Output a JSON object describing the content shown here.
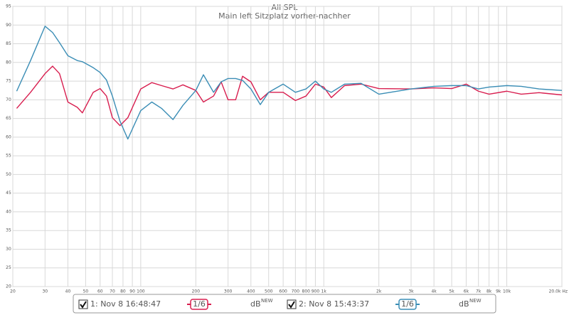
{
  "chart_data": {
    "type": "line",
    "title": "All SPL",
    "subtitle": "Main left Sitzplatz vorher-nachher",
    "log_x": true,
    "grid": true,
    "legend": "bottom",
    "xlim": [
      20,
      20000
    ],
    "ylim": [
      20,
      95
    ],
    "xticks": [
      20,
      30,
      40,
      50,
      60,
      70,
      80,
      90,
      100,
      200,
      300,
      400,
      500,
      600,
      700,
      800,
      900,
      {
        "value": 1000,
        "label": "1k"
      },
      {
        "value": 2000,
        "label": "2k"
      },
      {
        "value": 3000,
        "label": "3k"
      },
      {
        "value": 4000,
        "label": "4k"
      },
      {
        "value": 5000,
        "label": "5k"
      },
      {
        "value": 6000,
        "label": "6k"
      },
      {
        "value": 7000,
        "label": "7k"
      },
      {
        "value": 8000,
        "label": "8k"
      },
      {
        "value": 9000,
        "label": "9k"
      },
      {
        "value": 10000,
        "label": "10k"
      },
      {
        "value": 20000,
        "label": "20.0k Hz"
      }
    ],
    "yticks": [
      20,
      25,
      30,
      35,
      40,
      45,
      50,
      55,
      60,
      65,
      70,
      75,
      80,
      85,
      90,
      95
    ],
    "x": [
      21,
      25,
      30,
      33,
      36,
      40,
      45,
      48,
      55,
      60,
      65,
      70,
      77,
      85,
      100,
      115,
      130,
      150,
      170,
      200,
      220,
      250,
      275,
      300,
      330,
      360,
      400,
      450,
      500,
      600,
      700,
      800,
      900,
      1000,
      1100,
      1300,
      1600,
      2000,
      3000,
      4000,
      5000,
      6000,
      7000,
      8000,
      10000,
      12000,
      15000,
      20000
    ],
    "series": [
      {
        "name": "1: Nov 8 16:48:47",
        "color": "#d81e4f",
        "smoothing": "1/6",
        "unit": "dB",
        "unit_tag": "NEW",
        "values": [
          67.7,
          72,
          77,
          79,
          77,
          69.4,
          68,
          66.5,
          72,
          73,
          71,
          65.2,
          63.1,
          65.2,
          72.9,
          74.6,
          73.8,
          72.9,
          74,
          72.5,
          69.4,
          71,
          74.8,
          70,
          70,
          76.3,
          74.8,
          70,
          72,
          72,
          69.8,
          71,
          74.2,
          73.4,
          70.6,
          73.8,
          74.2,
          73,
          72.9,
          73.2,
          73,
          74.2,
          72.3,
          71.5,
          72.3,
          71.5,
          71.9,
          71.3
        ]
      },
      {
        "name": "2: Nov 8 15:43:37",
        "color": "#3a8db5",
        "smoothing": "1/6",
        "unit": "dB",
        "unit_tag": "NEW",
        "values": [
          72.3,
          80.5,
          89.7,
          88,
          85.3,
          81.8,
          80.5,
          80.2,
          78.6,
          77.3,
          75.3,
          71,
          64.3,
          59.5,
          67.1,
          69.4,
          67.7,
          64.7,
          68.5,
          72.5,
          76.7,
          72,
          74.8,
          75.7,
          75.7,
          75.2,
          72.9,
          68.7,
          72,
          74.2,
          72,
          72.9,
          75,
          72.9,
          72,
          74.2,
          74.4,
          71.5,
          72.9,
          73.6,
          73.8,
          73.8,
          72.9,
          73.4,
          73.8,
          73.6,
          72.9,
          72.5
        ]
      }
    ]
  }
}
